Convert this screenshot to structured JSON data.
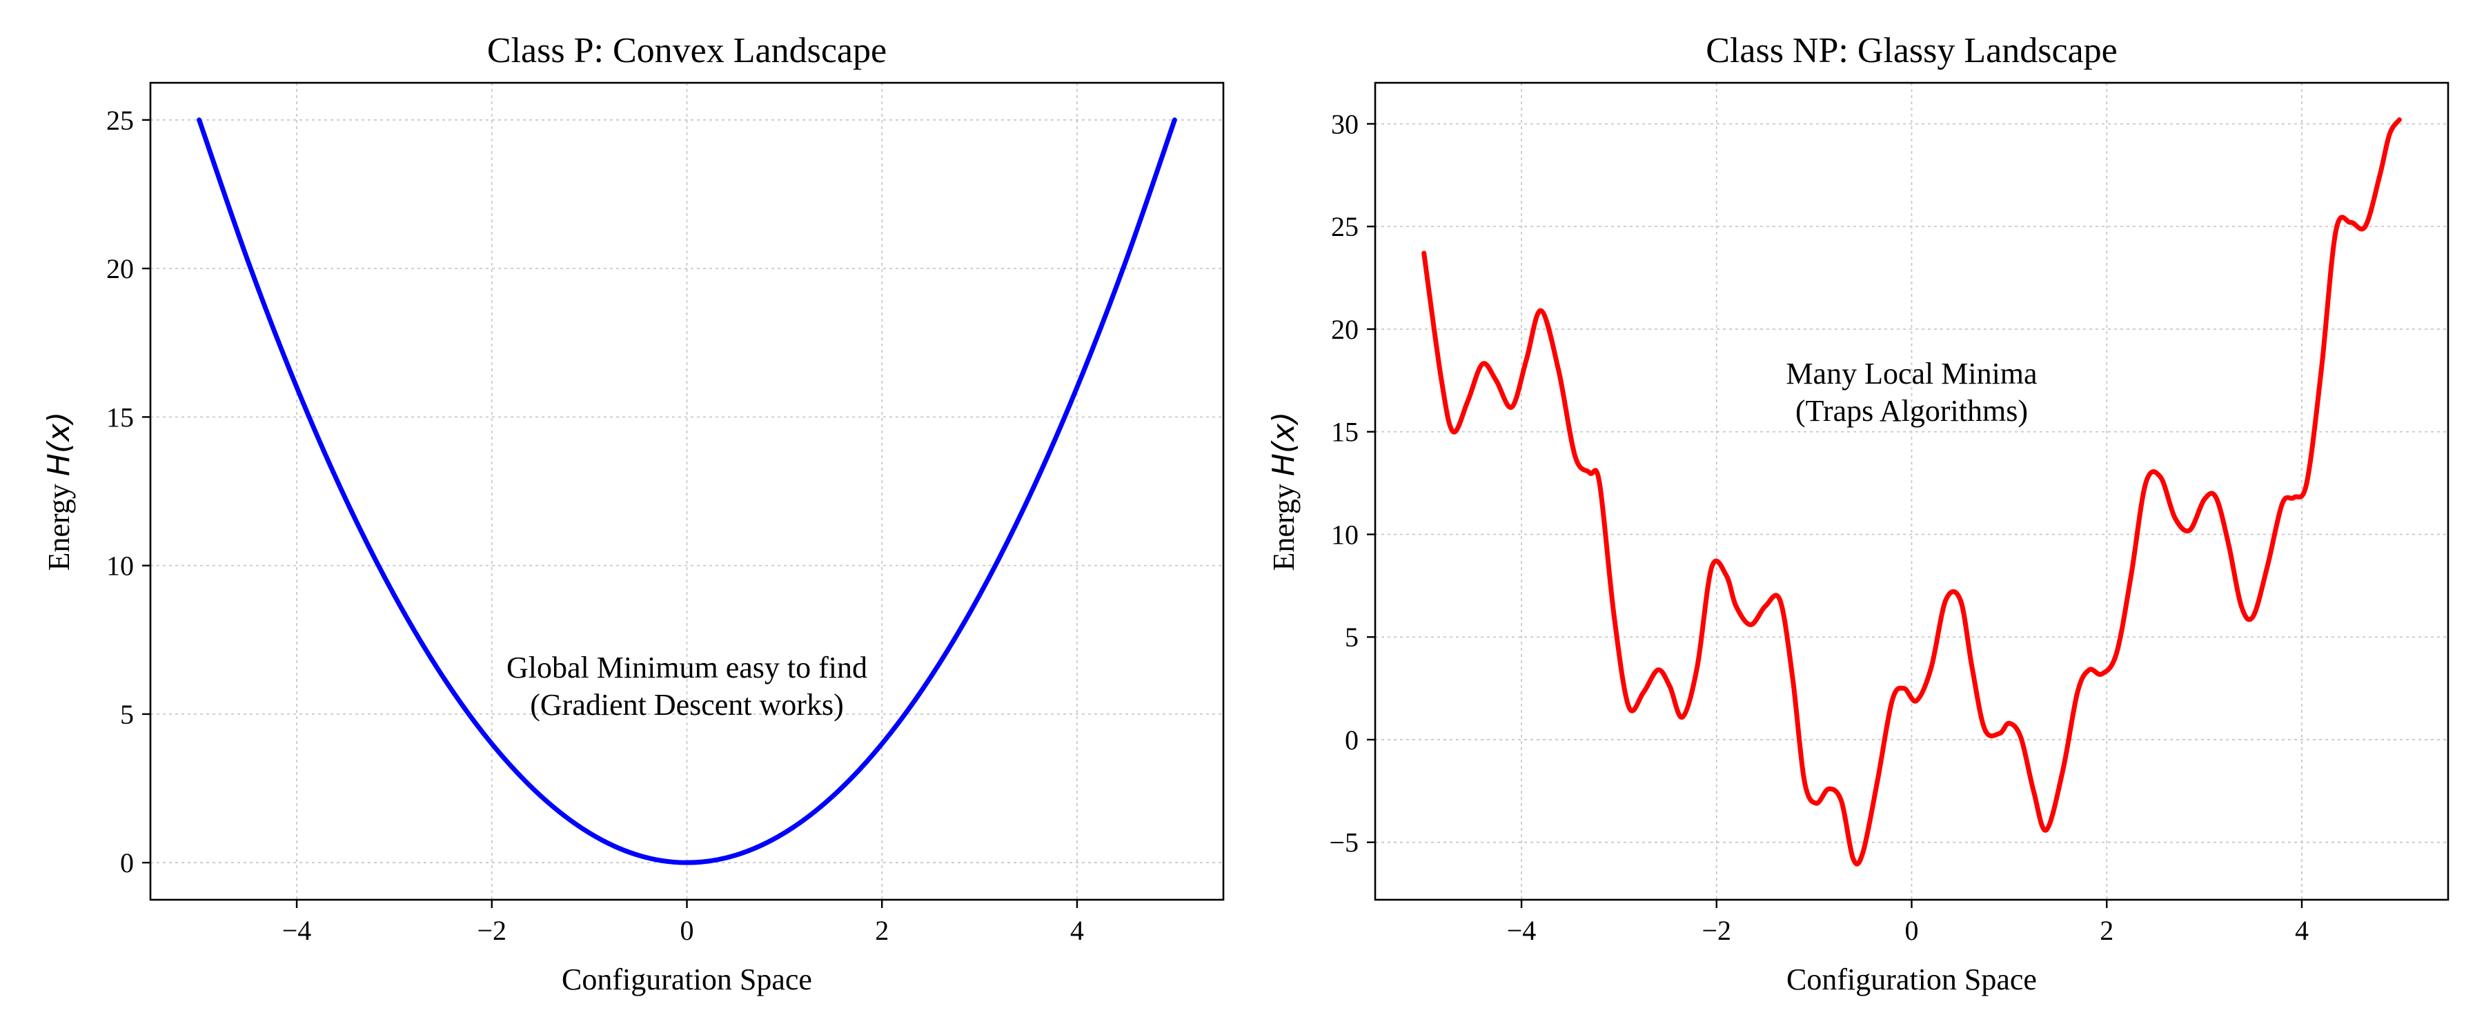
{
  "chart_data": [
    {
      "type": "line",
      "title": "Class P: Convex Landscape",
      "xlabel": "Configuration Space",
      "ylabel_text": "Energy ",
      "ylabel_math": "H(x)",
      "xlim": [
        -5.5,
        5.5
      ],
      "ylim": [
        -1.25,
        26.25
      ],
      "xticks": [
        -4,
        -2,
        0,
        2,
        4
      ],
      "yticks": [
        0,
        5,
        10,
        15,
        20,
        25
      ],
      "grid": true,
      "series": [
        {
          "color": "#0000ff",
          "x": [
            -5,
            -4.5,
            -4,
            -3.5,
            -3,
            -2.5,
            -2,
            -1.5,
            -1,
            -0.5,
            0,
            0.5,
            1,
            1.5,
            2,
            2.5,
            3,
            3.5,
            4,
            4.5,
            5
          ],
          "y": [
            25,
            20.25,
            16,
            12.25,
            9,
            6.25,
            4,
            2.25,
            1,
            0.25,
            0,
            0.25,
            1,
            2.25,
            4,
            6.25,
            9,
            12.25,
            16,
            20.25,
            25
          ]
        }
      ],
      "annotations": [
        {
          "x": 0,
          "y": 6,
          "lines": [
            "Global Minimum easy to find",
            "(Gradient Descent works)"
          ]
        }
      ]
    },
    {
      "type": "line",
      "title": "Class NP: Glassy Landscape",
      "xlabel": "Configuration Space",
      "ylabel_text": "Energy ",
      "ylabel_math": "H(x)",
      "xlim": [
        -5.5,
        5.5
      ],
      "ylim": [
        -7.8,
        32.0
      ],
      "xticks": [
        -4,
        -2,
        0,
        2,
        4
      ],
      "yticks": [
        -5,
        0,
        5,
        10,
        15,
        20,
        25,
        30
      ],
      "grid": true,
      "series": [
        {
          "color": "#ff0000",
          "x": [
            -5.0,
            -4.82,
            -4.7,
            -4.55,
            -4.4,
            -4.26,
            -4.1,
            -3.95,
            -3.8,
            -3.62,
            -3.45,
            -3.3,
            -3.2,
            -3.05,
            -2.9,
            -2.75,
            -2.6,
            -2.48,
            -2.35,
            -2.2,
            -2.05,
            -1.9,
            -1.8,
            -1.65,
            -1.5,
            -1.35,
            -1.22,
            -1.1,
            -0.98,
            -0.85,
            -0.72,
            -0.6,
            -0.5,
            -0.35,
            -0.2,
            -0.08,
            0.05,
            0.2,
            0.35,
            0.5,
            0.62,
            0.75,
            0.9,
            1.0,
            1.12,
            1.25,
            1.38,
            1.55,
            1.7,
            1.82,
            1.95,
            2.1,
            2.25,
            2.4,
            2.55,
            2.7,
            2.85,
            3.0,
            3.12,
            3.25,
            3.38,
            3.5,
            3.65,
            3.8,
            3.92,
            4.05,
            4.2,
            4.35,
            4.5,
            4.65,
            4.8,
            4.9,
            5.0
          ],
          "y": [
            23.7,
            17.5,
            15.0,
            16.5,
            18.3,
            17.5,
            16.2,
            18.5,
            20.9,
            18.0,
            13.8,
            13.0,
            12.5,
            6.0,
            1.6,
            2.3,
            3.4,
            2.6,
            1.1,
            3.5,
            8.4,
            8.0,
            6.5,
            5.6,
            6.5,
            6.8,
            3.0,
            -2.0,
            -3.1,
            -2.4,
            -3.0,
            -5.8,
            -5.5,
            -2.0,
            1.9,
            2.5,
            1.9,
            3.5,
            6.8,
            6.8,
            3.5,
            0.5,
            0.3,
            0.8,
            0.1,
            -2.5,
            -4.4,
            -1.5,
            2.3,
            3.4,
            3.2,
            4.2,
            8.0,
            12.5,
            12.8,
            10.8,
            10.2,
            11.7,
            11.8,
            9.5,
            6.5,
            6.0,
            8.5,
            11.5,
            11.8,
            12.5,
            18.0,
            24.8,
            25.2,
            25.0,
            27.5,
            29.5,
            30.2
          ]
        }
      ],
      "annotations": [
        {
          "x": 0,
          "y": 17,
          "lines": [
            "Many Local Minima",
            "(Traps Algorithms)"
          ]
        }
      ]
    }
  ]
}
